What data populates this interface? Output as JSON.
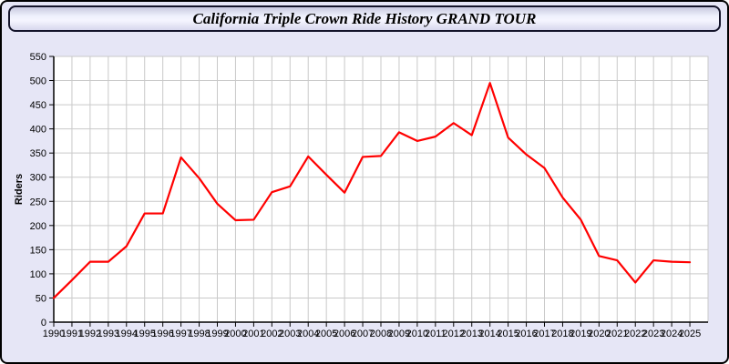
{
  "window": {
    "title": "California Triple Crown Ride History GRAND TOUR"
  },
  "chart_data": {
    "type": "line",
    "title": "California Triple Crown Ride History GRAND TOUR",
    "xlabel": "",
    "ylabel": "Riders",
    "x": [
      1990,
      1991,
      1992,
      1993,
      1994,
      1995,
      1996,
      1997,
      1998,
      1999,
      2000,
      2001,
      2002,
      2003,
      2004,
      2005,
      2006,
      2007,
      2008,
      2009,
      2010,
      2011,
      2012,
      2013,
      2014,
      2015,
      2016,
      2017,
      2018,
      2019,
      2020,
      2021,
      2022,
      2023,
      2024,
      2025
    ],
    "series": [
      {
        "name": "Riders",
        "values": [
          50,
          87,
          125,
          125,
          157,
          225,
          225,
          341,
          298,
          245,
          211,
          212,
          269,
          281,
          343,
          305,
          268,
          342,
          344,
          393,
          375,
          384,
          412,
          387,
          495,
          382,
          347,
          319,
          258,
          212,
          137,
          128,
          82,
          128,
          125,
          124
        ]
      }
    ],
    "ylim": [
      0,
      550
    ],
    "ytick_step": 50,
    "xlim": [
      1990,
      2026
    ],
    "grid": true,
    "legend": "none",
    "line_color": "#ff0000",
    "axis_color": "#000000",
    "grid_color": "#c9c9c9",
    "plot_background": "#ffffff",
    "window_background": "#e6e6f6"
  }
}
